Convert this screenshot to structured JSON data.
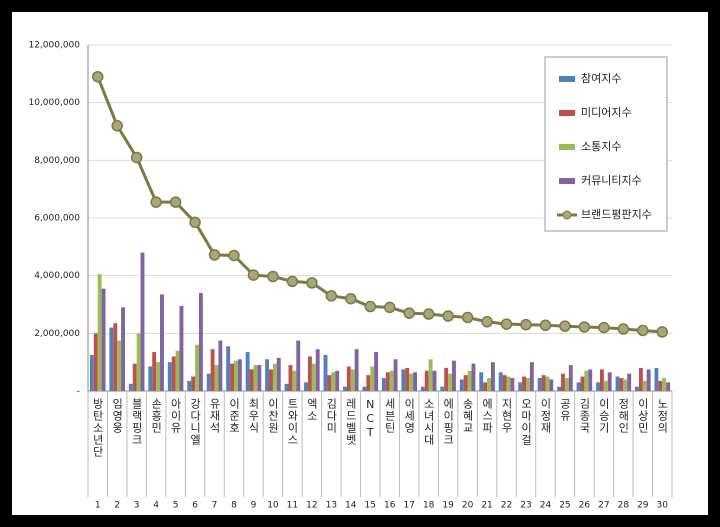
{
  "chart_data": {
    "type": "bar",
    "categories": [
      "방탄소년단",
      "임영웅",
      "블랙핑크",
      "손흥민",
      "아이유",
      "강다니엘",
      "유재석",
      "이준호",
      "최우식",
      "이찬원",
      "트와이스",
      "엑소",
      "김다미",
      "레드벨벳",
      "NCT",
      "세븐틴",
      "이세영",
      "소녀시대",
      "에이핑크",
      "송혜교",
      "에스파",
      "지현우",
      "오마이걸",
      "이정재",
      "공유",
      "김종국",
      "이승기",
      "정해인",
      "이상민",
      "노정의"
    ],
    "category_numbers": [
      1,
      2,
      3,
      4,
      5,
      6,
      7,
      8,
      9,
      10,
      11,
      12,
      13,
      14,
      15,
      16,
      17,
      18,
      19,
      20,
      21,
      22,
      23,
      24,
      25,
      26,
      27,
      28,
      29,
      30
    ],
    "ylim": [
      0,
      12000000
    ],
    "yticks": [
      {
        "value": 0,
        "label": "-"
      },
      {
        "value": 2000000,
        "label": "2,000,000"
      },
      {
        "value": 4000000,
        "label": "4,000,000"
      },
      {
        "value": 6000000,
        "label": "6,000,000"
      },
      {
        "value": 8000000,
        "label": "8,000,000"
      },
      {
        "value": 10000000,
        "label": "10,000,000"
      },
      {
        "value": 12000000,
        "label": "12,000,000"
      }
    ],
    "grid": true,
    "legend": "top-right",
    "series": [
      {
        "name": "참여지수",
        "type": "bar",
        "color": "#4f81bd",
        "values": [
          1250000,
          2200000,
          250000,
          850000,
          1000000,
          350000,
          600000,
          1550000,
          1350000,
          1100000,
          250000,
          300000,
          1250000,
          150000,
          150000,
          450000,
          750000,
          150000,
          150000,
          400000,
          650000,
          650000,
          300000,
          450000,
          150000,
          300000,
          300000,
          500000,
          150000,
          800000
        ]
      },
      {
        "name": "미디어지수",
        "type": "bar",
        "color": "#c0504d",
        "values": [
          2000000,
          2350000,
          950000,
          1350000,
          1200000,
          500000,
          1450000,
          950000,
          750000,
          750000,
          900000,
          1200000,
          550000,
          850000,
          550000,
          650000,
          800000,
          700000,
          800000,
          550000,
          300000,
          550000,
          500000,
          550000,
          600000,
          500000,
          750000,
          450000,
          800000,
          350000
        ]
      },
      {
        "name": "소통지수",
        "type": "bar",
        "color": "#9bbb59",
        "values": [
          4050000,
          1750000,
          2000000,
          1000000,
          1400000,
          1600000,
          900000,
          1050000,
          900000,
          950000,
          700000,
          950000,
          650000,
          750000,
          850000,
          700000,
          600000,
          1100000,
          600000,
          700000,
          450000,
          500000,
          450000,
          500000,
          450000,
          700000,
          350000,
          400000,
          350000,
          450000
        ]
      },
      {
        "name": "커뮤니티지수",
        "type": "bar",
        "color": "#8064a2",
        "values": [
          3550000,
          2900000,
          4800000,
          3350000,
          2950000,
          3400000,
          1750000,
          1100000,
          900000,
          1150000,
          1750000,
          1450000,
          700000,
          1450000,
          1350000,
          1100000,
          650000,
          700000,
          1050000,
          950000,
          1000000,
          450000,
          1000000,
          400000,
          900000,
          750000,
          650000,
          600000,
          750000,
          300000
        ]
      },
      {
        "name": "브랜드평판지수",
        "type": "line",
        "color": "#7a7a44",
        "marker_color": "#aaa67a",
        "values": [
          10900000,
          9200000,
          8100000,
          6550000,
          6550000,
          5850000,
          4720000,
          4700000,
          4020000,
          3970000,
          3800000,
          3750000,
          3300000,
          3200000,
          2930000,
          2900000,
          2700000,
          2670000,
          2600000,
          2550000,
          2400000,
          2320000,
          2300000,
          2280000,
          2250000,
          2220000,
          2200000,
          2150000,
          2100000,
          2050000
        ]
      }
    ]
  }
}
